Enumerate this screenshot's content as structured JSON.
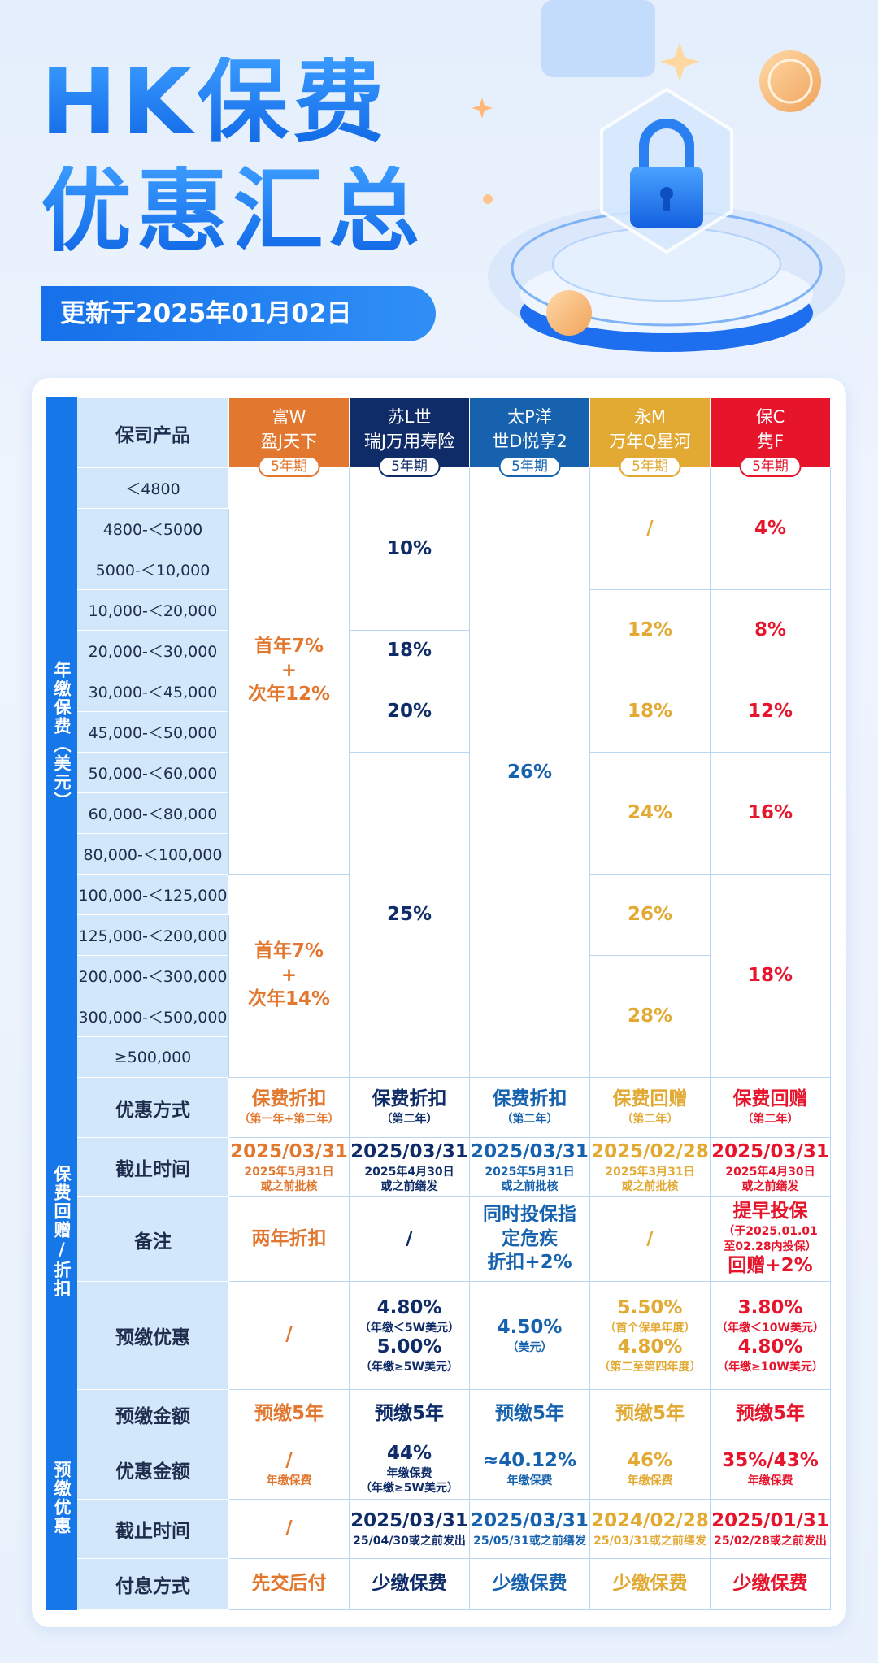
{
  "header": {
    "title": [
      "HK保费",
      "优惠汇总"
    ],
    "updated": "更新于2025年01月02日"
  },
  "table": {
    "corner": "保司产品",
    "companies": [
      {
        "name": [
          "富W",
          "盈J天下"
        ],
        "term": "5年期",
        "color": "#e2782f"
      },
      {
        "name": [
          "苏L世",
          "瑞J万用寿险"
        ],
        "term": "5年期",
        "color": "#0f2c68"
      },
      {
        "name": [
          "太P洋",
          "世D悦享2"
        ],
        "term": "5年期",
        "color": "#1662ae"
      },
      {
        "name": [
          "永M",
          "万年Q星河"
        ],
        "term": "5年期",
        "color": "#e2a933"
      },
      {
        "name": [
          "保C",
          "隽F"
        ],
        "term": "5年期",
        "color": "#e6152c"
      }
    ],
    "premium": {
      "label": "年缴保费（美元）",
      "bands": [
        "＜4800",
        "4800-＜5000",
        "5000-＜10,000",
        "10,000-＜20,000",
        "20,000-＜30,000",
        "30,000-＜45,000",
        "45,000-＜50,000",
        "50,000-＜60,000",
        "60,000-＜80,000",
        "80,000-＜100,000",
        "100,000-＜125,000",
        "125,000-＜200,000",
        "200,000-＜300,000",
        "300,000-＜500,000",
        "≥500,000"
      ],
      "columns": [
        [
          {
            "rowspan": 10,
            "lines": [
              "首年7%",
              "+",
              "次年12%"
            ]
          },
          {
            "rowspan": 5,
            "lines": [
              "首年7%",
              "+",
              "次年14%"
            ]
          }
        ],
        [
          {
            "rowspan": 4,
            "lines": [
              "10%"
            ]
          },
          {
            "rowspan": 1,
            "lines": [
              "18%"
            ]
          },
          {
            "rowspan": 2,
            "lines": [
              "20%"
            ]
          },
          {
            "rowspan": 8,
            "lines": [
              "25%"
            ]
          }
        ],
        [
          {
            "rowspan": 15,
            "lines": [
              "26%"
            ]
          }
        ],
        [
          {
            "rowspan": 3,
            "lines": [
              "/"
            ]
          },
          {
            "rowspan": 2,
            "lines": [
              "12%"
            ]
          },
          {
            "rowspan": 2,
            "lines": [
              "18%"
            ]
          },
          {
            "rowspan": 3,
            "lines": [
              "24%"
            ]
          },
          {
            "rowspan": 2,
            "lines": [
              "26%"
            ]
          },
          {
            "rowspan": 3,
            "lines": [
              "28%"
            ]
          }
        ],
        [
          {
            "rowspan": 3,
            "lines": [
              "4%"
            ]
          },
          {
            "rowspan": 2,
            "lines": [
              "8%"
            ]
          },
          {
            "rowspan": 2,
            "lines": [
              "12%"
            ]
          },
          {
            "rowspan": 3,
            "lines": [
              "16%"
            ]
          },
          {
            "rowspan": 5,
            "lines": [
              "18%"
            ]
          }
        ]
      ]
    },
    "sections": [
      {
        "label": "保费回赠/折扣",
        "rows": [
          {
            "label": "优惠方式",
            "cells": [
              [
                "保费折扣",
                "（第一年+第二年）"
              ],
              [
                "保费折扣",
                "（第二年）"
              ],
              [
                "保费折扣",
                "（第二年）"
              ],
              [
                "保费回赠",
                "（第二年）"
              ],
              [
                "保费回赠",
                "（第二年）"
              ]
            ]
          },
          {
            "label": "截止时间",
            "cells": [
              [
                "2025/03/31",
                "2025年5月31日",
                "或之前批核"
              ],
              [
                "2025/03/31",
                "2025年4月30日",
                "或之前缮发"
              ],
              [
                "2025/03/31",
                "2025年5月31日",
                "或之前批核"
              ],
              [
                "2025/02/28",
                "2025年3月31日",
                "或之前批核"
              ],
              [
                "2025/03/31",
                "2025年4月30日",
                "或之前缮发"
              ]
            ]
          },
          {
            "label": "备注",
            "cells": [
              [
                "两年折扣"
              ],
              [
                "/"
              ],
              [
                "同时投保指",
                "定危疾",
                "折扣+2%"
              ],
              [
                "/"
              ],
              [
                "提早投保",
                "（于2025.01.01",
                "至02.28内投保）",
                "回赠+2%"
              ]
            ]
          },
          {
            "label": "预缴优惠",
            "cells": [
              [
                "/"
              ],
              [
                "4.80%",
                "（年缴＜5W美元）",
                "5.00%",
                "（年缴≥5W美元）"
              ],
              [
                "4.50%",
                "（美元）"
              ],
              [
                "5.50%",
                "（首个保单年度）",
                "4.80%",
                "（第二至第四年度）"
              ],
              [
                "3.80%",
                "（年缴＜10W美元）",
                "4.80%",
                "（年缴≥10W美元）"
              ]
            ]
          }
        ]
      },
      {
        "label": "预缴优惠",
        "rows": [
          {
            "label": "预缴金额",
            "cells": [
              [
                "预缴5年"
              ],
              [
                "预缴5年"
              ],
              [
                "预缴5年"
              ],
              [
                "预缴5年"
              ],
              [
                "预缴5年"
              ]
            ]
          },
          {
            "label": "优惠金额",
            "cells": [
              [
                "/",
                "年缴保费"
              ],
              [
                "44%",
                "年缴保费",
                "（年缴≥5W美元）"
              ],
              [
                "≈40.12%",
                "年缴保费"
              ],
              [
                "46%",
                "年缴保费"
              ],
              [
                "35%/43%",
                "年缴保费"
              ]
            ]
          },
          {
            "label": "截止时间",
            "cells": [
              [
                "/"
              ],
              [
                "2025/03/31",
                "25/04/30或之前发出"
              ],
              [
                "2025/03/31",
                "25/05/31或之前缮发"
              ],
              [
                "2024/02/28",
                "25/03/31或之前缮发"
              ],
              [
                "2025/01/31",
                "25/02/28或之前发出"
              ]
            ]
          },
          {
            "label": "付息方式",
            "cells": [
              [
                "先交后付"
              ],
              [
                "少缴保费"
              ],
              [
                "少缴保费"
              ],
              [
                "少缴保费"
              ],
              [
                "少缴保费"
              ]
            ]
          }
        ]
      }
    ]
  }
}
